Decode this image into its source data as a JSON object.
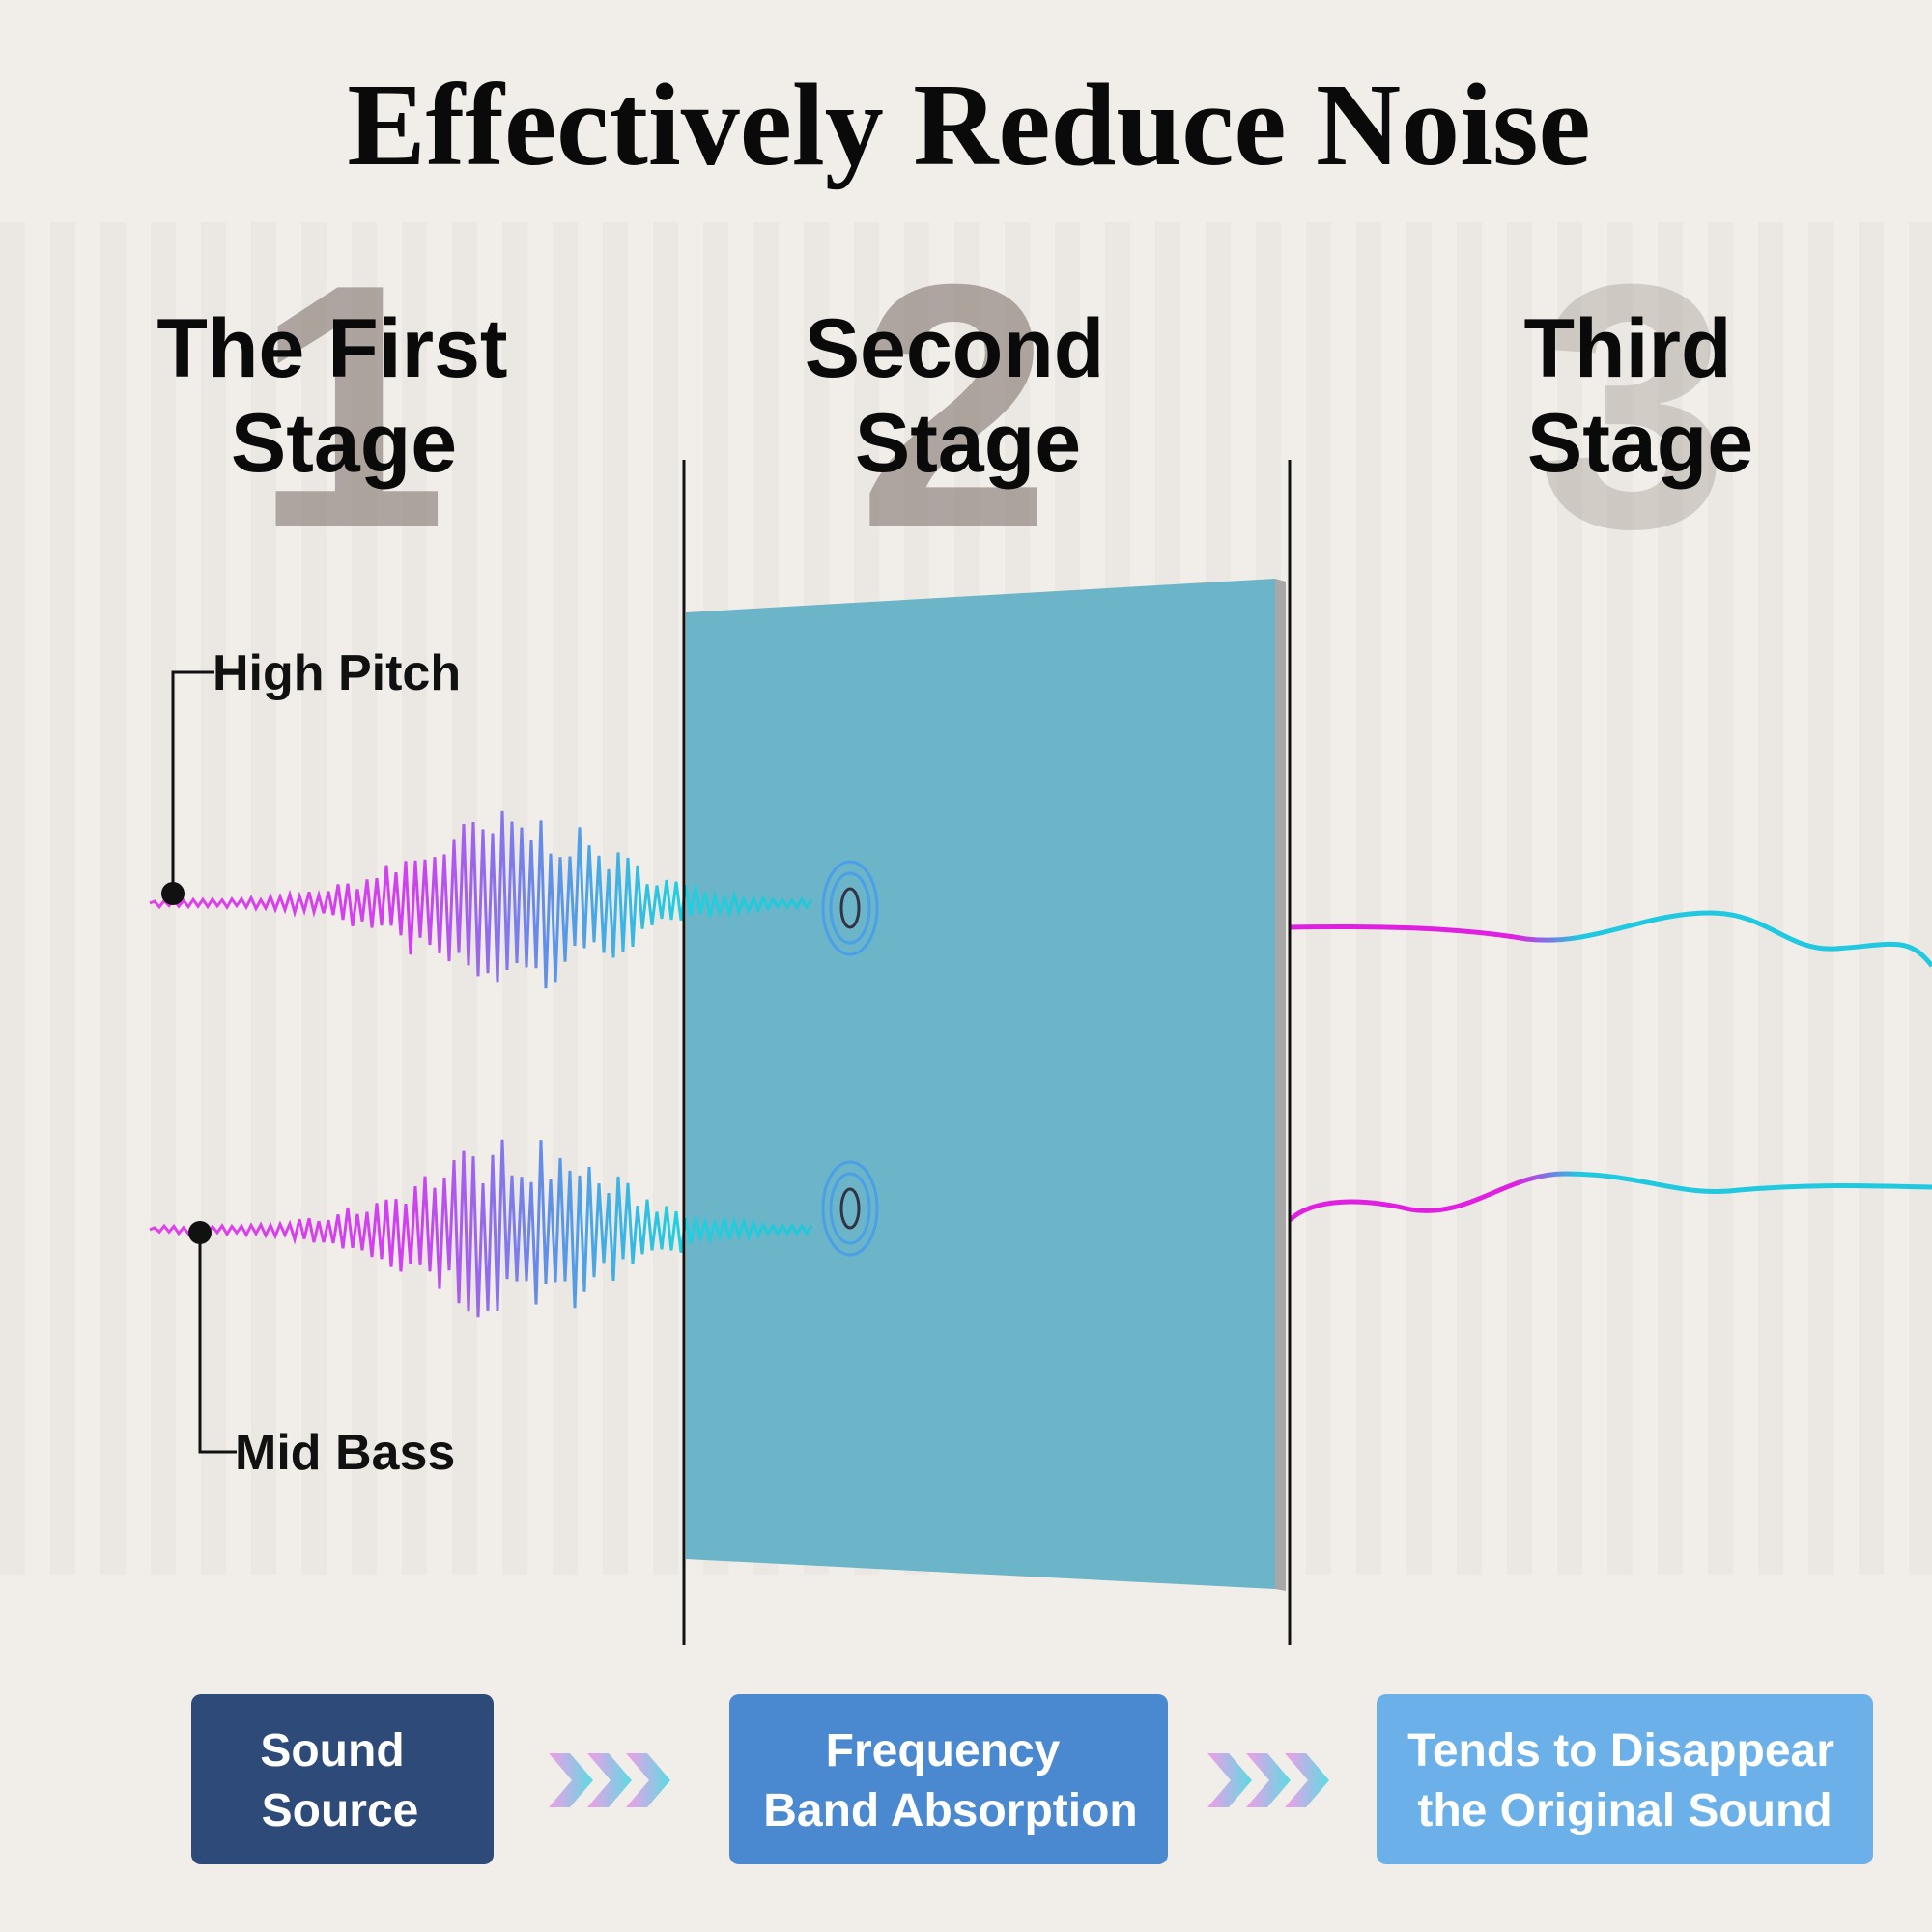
{
  "title": "Effectively Reduce Noise",
  "stages": [
    {
      "number": "1",
      "lines": [
        "The First",
        "Stage"
      ]
    },
    {
      "number": "2",
      "lines": [
        "Second",
        "Stage"
      ]
    },
    {
      "number": "3",
      "lines": [
        "Third",
        "Stage"
      ]
    }
  ],
  "labels": {
    "high": "High Pitch",
    "mid": "Mid Bass"
  },
  "steps": [
    {
      "lines": [
        "Sound",
        "Source"
      ]
    },
    {
      "lines": [
        "Frequency",
        "Band Absorption"
      ]
    },
    {
      "lines": [
        "Tends to Disappear",
        "the Original Sound"
      ]
    }
  ]
}
